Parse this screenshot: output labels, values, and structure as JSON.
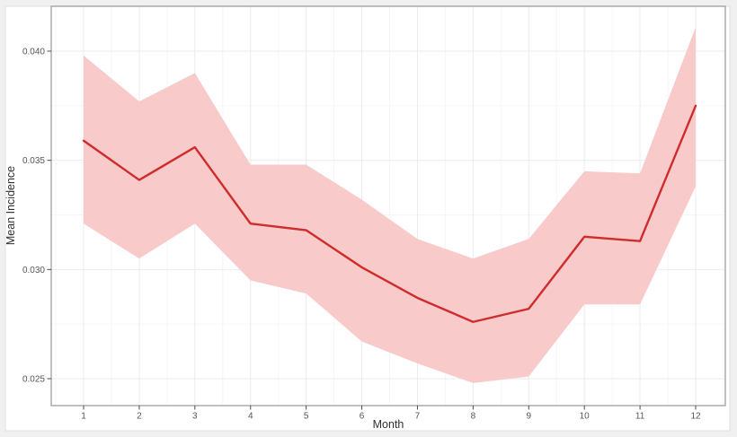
{
  "page": {
    "background_color": "#f0f0f1",
    "figure_background_color": "#ffffff",
    "figure_border_color": "#e0e0e0"
  },
  "chart_data": {
    "type": "line",
    "title": "",
    "xlabel": "Month",
    "ylabel": "Mean Incidence",
    "x": [
      1,
      2,
      3,
      4,
      5,
      6,
      7,
      8,
      9,
      10,
      11,
      12
    ],
    "x_tick_labels": [
      "1",
      "2",
      "3",
      "4",
      "5",
      "6",
      "7",
      "8",
      "9",
      "10",
      "11",
      "12"
    ],
    "y_ticks": [
      0.025,
      0.03,
      0.035,
      0.04
    ],
    "y_tick_labels": [
      "0.025",
      "0.030",
      "0.035",
      "0.040"
    ],
    "xlim": [
      0.4185,
      12.533
    ],
    "ylim": [
      0.023767,
      0.042055
    ],
    "grid": true,
    "legend": "none",
    "series": [
      {
        "name": "mean-incidence-line",
        "color": "#cf2c2c",
        "values": [
          0.0359,
          0.0341,
          0.0356,
          0.0321,
          0.0318,
          0.0301,
          0.0287,
          0.0276,
          0.0282,
          0.0315,
          0.0313,
          0.0375
        ]
      }
    ],
    "band": {
      "name": "confidence-interval-ribbon",
      "color": "#f8caca",
      "lower": [
        0.0321,
        0.0305,
        0.0321,
        0.0295,
        0.0289,
        0.0267,
        0.0257,
        0.0248,
        0.0251,
        0.0284,
        0.0284,
        0.0338
      ],
      "upper": [
        0.0398,
        0.0377,
        0.039,
        0.0348,
        0.0348,
        0.0332,
        0.0314,
        0.0305,
        0.0314,
        0.0345,
        0.0344,
        0.0411
      ]
    },
    "style": {
      "panel_border_color": "#979797",
      "major_grid_color": "#ebebeb",
      "minor_grid_color": "#f6f6f6",
      "tick_mark_color": "#4a4a4a"
    }
  }
}
